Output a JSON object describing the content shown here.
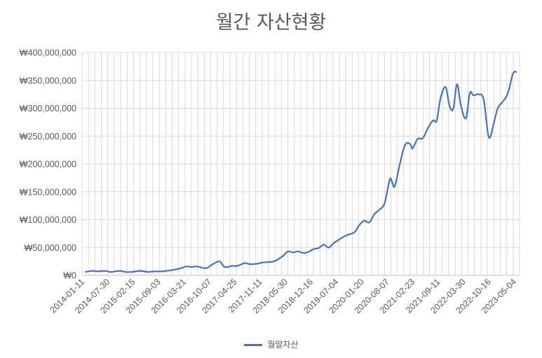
{
  "chart_data": {
    "type": "line",
    "title": "월간 자산현황",
    "xlabel": "",
    "ylabel": "",
    "ylim": [
      0,
      400000000
    ],
    "yticks": [
      "₩0",
      "₩50,000,000",
      "₩100,000,000",
      "₩150,000,000",
      "₩200,000,000",
      "₩250,000,000",
      "₩300,000,000",
      "₩350,000,000",
      "₩400,000,000"
    ],
    "xticks": [
      "2014-01-11",
      "2014-07-30",
      "2015-02-15",
      "2015-09-03",
      "2016-03-21",
      "2016-10-07",
      "2017-04-25",
      "2017-11-11",
      "2018-05-30",
      "2018-12-16",
      "2019-07-04",
      "2020-01-20",
      "2020-08-07",
      "2021-02-23",
      "2021-09-11",
      "2022-03-30",
      "2022-10-16",
      "2023-05-04"
    ],
    "grid": true,
    "legend": "bottom",
    "series": [
      {
        "name": "월말자산",
        "color": "#4472c4",
        "points": [
          [
            0,
            6
          ],
          [
            0.3,
            8
          ],
          [
            0.5,
            7
          ],
          [
            0.8,
            8
          ],
          [
            1,
            6
          ],
          [
            1.2,
            7
          ],
          [
            1.4,
            8
          ],
          [
            1.6,
            6
          ],
          [
            1.8,
            6
          ],
          [
            2,
            7
          ],
          [
            2.2,
            8
          ],
          [
            2.5,
            6
          ],
          [
            2.7,
            7
          ],
          [
            3,
            7
          ],
          [
            3.2,
            8
          ],
          [
            3.4,
            9
          ],
          [
            3.6,
            11
          ],
          [
            3.8,
            13
          ],
          [
            4,
            16
          ],
          [
            4.2,
            15
          ],
          [
            4.4,
            16
          ],
          [
            4.6,
            14
          ],
          [
            4.8,
            13
          ],
          [
            5,
            19
          ],
          [
            5.3,
            25
          ],
          [
            5.5,
            15
          ],
          [
            5.8,
            17
          ],
          [
            6,
            17
          ],
          [
            6.3,
            22
          ],
          [
            6.5,
            20
          ],
          [
            6.8,
            21
          ],
          [
            7,
            23
          ],
          [
            7.3,
            24
          ],
          [
            7.5,
            26
          ],
          [
            7.8,
            35
          ],
          [
            8,
            43
          ],
          [
            8.2,
            41
          ],
          [
            8.4,
            43
          ],
          [
            8.6,
            40
          ],
          [
            8.8,
            42
          ],
          [
            9,
            47
          ],
          [
            9.2,
            49
          ],
          [
            9.4,
            55
          ],
          [
            9.6,
            50
          ],
          [
            9.8,
            58
          ],
          [
            10,
            64
          ],
          [
            10.3,
            72
          ],
          [
            10.6,
            77
          ],
          [
            10.8,
            90
          ],
          [
            11,
            98
          ],
          [
            11.2,
            95
          ],
          [
            11.4,
            110
          ],
          [
            11.6,
            118
          ],
          [
            11.8,
            130
          ],
          [
            12,
            172
          ],
          [
            12.1,
            167
          ],
          [
            12.2,
            160
          ],
          [
            12.4,
            200
          ],
          [
            12.6,
            234
          ],
          [
            12.8,
            236
          ],
          [
            12.9,
            228
          ],
          [
            13.1,
            245
          ],
          [
            13.3,
            246
          ],
          [
            13.5,
            264
          ],
          [
            13.7,
            278
          ],
          [
            13.85,
            278
          ],
          [
            14,
            318
          ],
          [
            14.2,
            338
          ],
          [
            14.35,
            305
          ],
          [
            14.5,
            299
          ],
          [
            14.65,
            343
          ],
          [
            14.8,
            305
          ],
          [
            15,
            282
          ],
          [
            15.15,
            327
          ],
          [
            15.3,
            323
          ],
          [
            15.5,
            325
          ],
          [
            15.7,
            315
          ],
          [
            15.9,
            248
          ],
          [
            16.1,
            274
          ],
          [
            16.25,
            300
          ],
          [
            16.45,
            312
          ],
          [
            16.65,
            327
          ],
          [
            16.85,
            362
          ],
          [
            17,
            365
          ]
        ]
      }
    ]
  }
}
